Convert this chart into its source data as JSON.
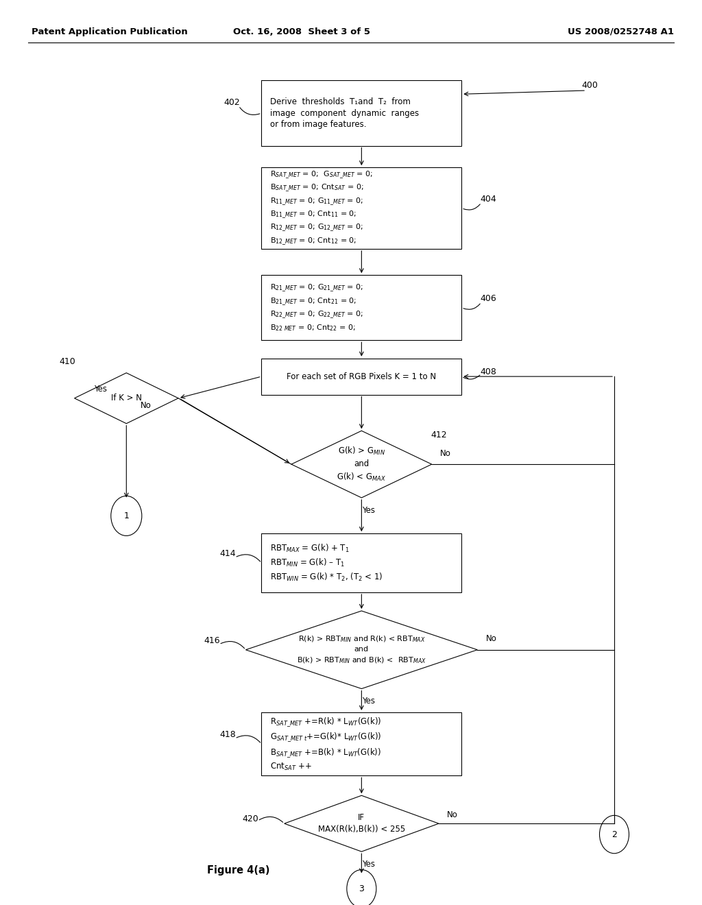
{
  "header_left": "Patent Application Publication",
  "header_mid": "Oct. 16, 2008  Sheet 3 of 5",
  "header_right": "US 2008/0252748 A1",
  "figure_caption": "Figure 4(a)",
  "bg_color": "#ffffff",
  "box402_text": "Derive  thresholds  T₁and  T₂  from\nimage  component  dynamic  ranges\nor from image features.",
  "box404_text": "R$_{SAT\\_MET}$ = 0;  G$_{SAT\\_MET}$ = 0;\nB$_{SAT\\_MET}$ = 0; Cnt$_{SAT}$ = 0;\nR$_{11\\_MET}$ = 0; G$_{11\\_MET}$ = 0;\nB$_{11\\_MET}$ = 0; Cnt$_{11}$ = 0;\nR$_{12\\_MET}$ = 0; G$_{12\\_MET}$ = 0;\nB$_{12\\_MET}$ = 0; Cnt$_{12}$ = 0;",
  "box406_text": "R$_{21\\_MET}$ = 0; G$_{21\\_MET}$ = 0;\nB$_{21\\_MET}$ = 0; Cnt$_{21}$ = 0;\nR$_{22\\_MET}$ = 0; G$_{22\\_MET}$ = 0;\nB$_{22\\ MET}$ = 0; Cnt$_{22}$ = 0;",
  "box408_text": "For each set of RGB Pixels K = 1 to N",
  "d410_text": "If K > N",
  "d412_text": "G(k) > G$_{MIN}$\nand\nG(k) < G$_{MAX}$",
  "box414_text": "RBT$_{MAX}$ = G(k) + T$_1$\nRBT$_{MIN}$ = G(k) – T$_1$\nRBT$_{WIN}$ = G(k) * T$_2$, (T$_2$ < 1)",
  "d416_text": "R(k) > RBT$_{MIN}$ and R(k) < RBT$_{MAX}$\nand\nB(k) > RBT$_{MIN}$ and B(k) <  RBT$_{MAX}$",
  "box418_text": "R$_{SAT\\_MET}$ +=R(k) * L$_{WT}$(G(k))\nG$_{SAT\\_MET\\ t}$+=G(k)* L$_{WT}$(G(k))\nB$_{SAT\\_MET}$ +=B(k) * L$_{WT}$(G(k))\nCnt$_{SAT}$ ++",
  "d420_text": "IF\nMAX(R(k),B(k)) < 255"
}
